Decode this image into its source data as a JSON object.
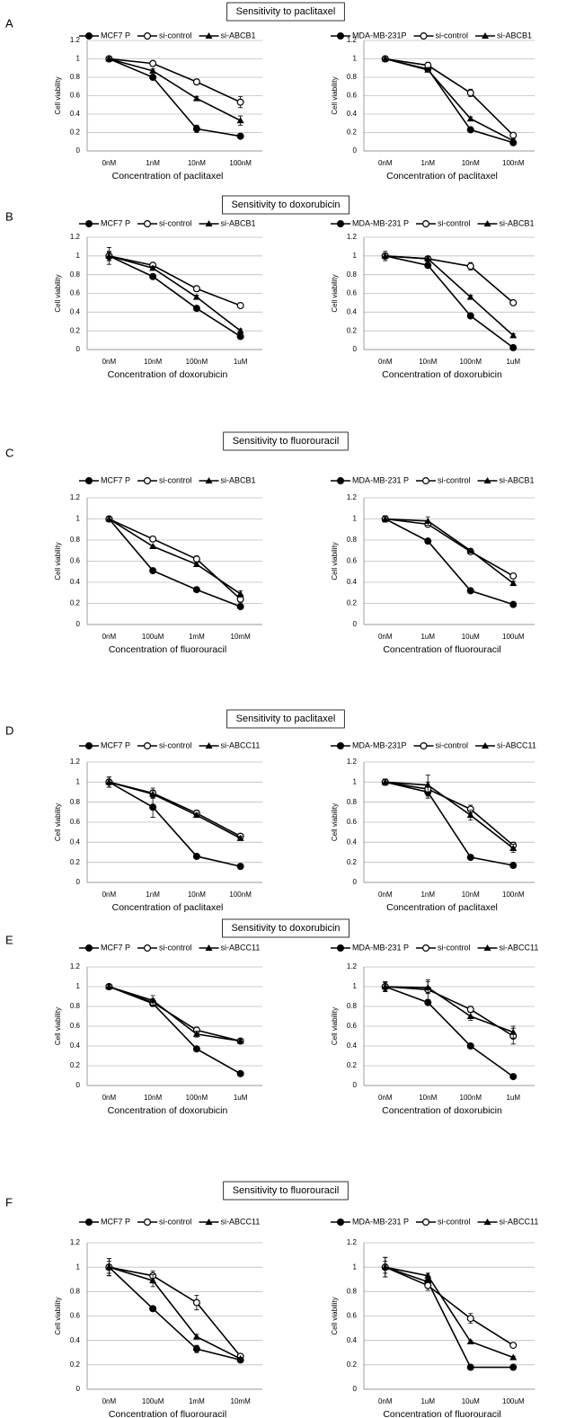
{
  "panels": [
    {
      "label": "A",
      "title": "Sensitivity to paclitaxel"
    },
    {
      "label": "B",
      "title": "Sensitivity to doxorubicin"
    },
    {
      "label": "C",
      "title": "Sensitivity to fluorouracil"
    },
    {
      "label": "D",
      "title": "Sensitivity to paclitaxel"
    },
    {
      "label": "E",
      "title": "Sensitivity to doxorubicin"
    },
    {
      "label": "F",
      "title": "Sensitivity to fluorouracil"
    }
  ],
  "chart_data": [
    {
      "type": "line",
      "ylabel": "Cell viability",
      "xlabel": "Concentration of paclitaxel",
      "categories": [
        "0nM",
        "1nM",
        "10nM",
        "100nM"
      ],
      "ylim": [
        0,
        1.2
      ],
      "yticks": [
        0,
        0.2,
        0.4,
        0.6,
        0.8,
        1,
        1.2
      ],
      "grid": true,
      "series": [
        {
          "name": "MCF7 P",
          "color": "#000000",
          "marker": "filled-circle",
          "values": [
            1,
            0.8,
            0.24,
            0.16
          ],
          "errors": [
            0.01,
            0.02,
            0.04,
            0.01
          ]
        },
        {
          "name": "si-control",
          "color": "#000000",
          "marker": "open-circle",
          "values": [
            1,
            0.95,
            0.75,
            0.53
          ],
          "errors": [
            0.01,
            0.02,
            0.03,
            0.06
          ]
        },
        {
          "name": "si-ABCB1",
          "color": "#000000",
          "marker": "filled-triangle",
          "values": [
            1,
            0.87,
            0.57,
            0.33
          ],
          "errors": [
            0.01,
            0.02,
            0.02,
            0.05
          ]
        }
      ]
    },
    {
      "type": "line",
      "ylabel": "Cell viability",
      "xlabel": "Concentration of paclitaxel",
      "categories": [
        "0nM",
        "1nM",
        "10nM",
        "100nM"
      ],
      "ylim": [
        0,
        1.2
      ],
      "yticks": [
        0,
        0.2,
        0.4,
        0.6,
        0.8,
        1,
        1.2
      ],
      "grid": true,
      "series": [
        {
          "name": "MDA-MB-231P",
          "color": "#000000",
          "marker": "filled-circle",
          "values": [
            1,
            0.89,
            0.23,
            0.09
          ],
          "errors": [
            0.01,
            0.02,
            0.01,
            0.01
          ]
        },
        {
          "name": "si-control",
          "color": "#000000",
          "marker": "open-circle",
          "values": [
            1,
            0.93,
            0.63,
            0.17
          ],
          "errors": [
            0.01,
            0.03,
            0.04,
            0.02
          ]
        },
        {
          "name": "si-ABCB1",
          "color": "#000000",
          "marker": "filled-triangle",
          "values": [
            1,
            0.88,
            0.35,
            0.11
          ],
          "errors": [
            0.01,
            0.02,
            0.02,
            0.02
          ]
        }
      ]
    },
    {
      "type": "line",
      "ylabel": "Cell viability",
      "xlabel": "Concentration of doxorubicin",
      "categories": [
        "0nM",
        "10nM",
        "100nM",
        "1uM"
      ],
      "ylim": [
        0,
        1.2
      ],
      "yticks": [
        0,
        0.2,
        0.4,
        0.6,
        0.8,
        1,
        1.2
      ],
      "grid": true,
      "series": [
        {
          "name": "MCF7 P",
          "color": "#000000",
          "marker": "filled-circle",
          "values": [
            1,
            0.78,
            0.44,
            0.14
          ],
          "errors": [
            0.09,
            0.01,
            0.02,
            0.01
          ]
        },
        {
          "name": "si-control",
          "color": "#000000",
          "marker": "open-circle",
          "values": [
            1,
            0.9,
            0.65,
            0.47
          ],
          "errors": [
            0.05,
            0.02,
            0.03,
            0.02
          ]
        },
        {
          "name": "si-ABCB1",
          "color": "#000000",
          "marker": "filled-triangle",
          "values": [
            1,
            0.87,
            0.56,
            0.2
          ],
          "errors": [
            0.04,
            0.02,
            0.02,
            0.02
          ]
        }
      ]
    },
    {
      "type": "line",
      "ylabel": "Cell viability",
      "xlabel": "Concentration of doxorubicin",
      "categories": [
        "0nM",
        "10nM",
        "100nM",
        "1uM"
      ],
      "ylim": [
        0,
        1.2
      ],
      "yticks": [
        0,
        0.2,
        0.4,
        0.6,
        0.8,
        1,
        1.2
      ],
      "grid": true,
      "series": [
        {
          "name": "MDA-MB-231 P",
          "color": "#000000",
          "marker": "filled-circle",
          "values": [
            1,
            0.9,
            0.36,
            0.02
          ],
          "errors": [
            0.05,
            0.02,
            0.01,
            0.01
          ]
        },
        {
          "name": "si-control",
          "color": "#000000",
          "marker": "open-circle",
          "values": [
            1,
            0.97,
            0.89,
            0.5
          ],
          "errors": [
            0.03,
            0.02,
            0.04,
            0.02
          ]
        },
        {
          "name": "si-ABCB1",
          "color": "#000000",
          "marker": "filled-triangle",
          "values": [
            1,
            0.97,
            0.56,
            0.15
          ],
          "errors": [
            0.03,
            0.02,
            0.02,
            0.02
          ]
        }
      ]
    },
    {
      "type": "line",
      "ylabel": "Cell viability",
      "xlabel": "Concentration of fluorouracil",
      "categories": [
        "0nM",
        "100uM",
        "1mM",
        "10mM"
      ],
      "ylim": [
        0,
        1.2
      ],
      "yticks": [
        0,
        0.2,
        0.4,
        0.6,
        0.8,
        1,
        1.2
      ],
      "grid": true,
      "series": [
        {
          "name": "MCF7 P",
          "color": "#000000",
          "marker": "filled-circle",
          "values": [
            1,
            0.51,
            0.33,
            0.17
          ],
          "errors": [
            0.02,
            0.02,
            0.01,
            0.01
          ]
        },
        {
          "name": "si-control",
          "color": "#000000",
          "marker": "open-circle",
          "values": [
            1,
            0.81,
            0.62,
            0.24
          ],
          "errors": [
            0.02,
            0.01,
            0.03,
            0.03
          ]
        },
        {
          "name": "si-ABCB1",
          "color": "#000000",
          "marker": "filled-triangle",
          "values": [
            1,
            0.74,
            0.57,
            0.29
          ],
          "errors": [
            0.02,
            0.01,
            0.02,
            0.03
          ]
        }
      ]
    },
    {
      "type": "line",
      "ylabel": "Cell viability",
      "xlabel": "Concentration of fluorouracil",
      "categories": [
        "0nM",
        "1uM",
        "10uM",
        "100uM"
      ],
      "ylim": [
        0,
        1.2
      ],
      "yticks": [
        0,
        0.2,
        0.4,
        0.6,
        0.8,
        1,
        1.2
      ],
      "grid": true,
      "series": [
        {
          "name": "MDA-MB-231 P",
          "color": "#000000",
          "marker": "filled-circle",
          "values": [
            1,
            0.79,
            0.32,
            0.19
          ],
          "errors": [
            0.03,
            0.02,
            0.01,
            0.01
          ]
        },
        {
          "name": "si-control",
          "color": "#000000",
          "marker": "open-circle",
          "values": [
            1,
            0.95,
            0.69,
            0.46
          ],
          "errors": [
            0.03,
            0.02,
            0.01,
            0.01
          ]
        },
        {
          "name": "si-ABCB1",
          "color": "#000000",
          "marker": "filled-triangle",
          "values": [
            1,
            0.98,
            0.7,
            0.39
          ],
          "errors": [
            0.03,
            0.04,
            0.02,
            0.02
          ]
        }
      ]
    },
    {
      "type": "line",
      "ylabel": "Cell viability",
      "xlabel": "Concentration of paclitaxel",
      "categories": [
        "0nM",
        "1nM",
        "10nM",
        "100nM"
      ],
      "ylim": [
        0,
        1.2
      ],
      "yticks": [
        0,
        0.2,
        0.4,
        0.6,
        0.8,
        1,
        1.2
      ],
      "grid": true,
      "series": [
        {
          "name": "MCF7 P",
          "color": "#000000",
          "marker": "filled-circle",
          "values": [
            1,
            0.75,
            0.26,
            0.16
          ],
          "errors": [
            0.05,
            0.1,
            0.01,
            0.01
          ]
        },
        {
          "name": "si-control",
          "color": "#000000",
          "marker": "open-circle",
          "values": [
            1,
            0.89,
            0.69,
            0.46
          ],
          "errors": [
            0.05,
            0.05,
            0.03,
            0.02
          ]
        },
        {
          "name": "si-ABCC11",
          "color": "#000000",
          "marker": "filled-triangle",
          "values": [
            1,
            0.88,
            0.67,
            0.44
          ],
          "errors": [
            0.05,
            0.04,
            0.02,
            0.02
          ]
        }
      ]
    },
    {
      "type": "line",
      "ylabel": "Cell viability",
      "xlabel": "Concentration of paclitaxel",
      "categories": [
        "0nM",
        "1nM",
        "10nM",
        "100nM"
      ],
      "ylim": [
        0,
        1.2
      ],
      "yticks": [
        0,
        0.2,
        0.4,
        0.6,
        0.8,
        1,
        1.2
      ],
      "grid": true,
      "series": [
        {
          "name": "MDA-MB-231P",
          "color": "#000000",
          "marker": "filled-circle",
          "values": [
            1,
            0.9,
            0.25,
            0.17
          ],
          "errors": [
            0.03,
            0.06,
            0.01,
            0.01
          ]
        },
        {
          "name": "si-control",
          "color": "#000000",
          "marker": "open-circle",
          "values": [
            1,
            0.93,
            0.73,
            0.37
          ],
          "errors": [
            0.03,
            0.07,
            0.04,
            0.03
          ]
        },
        {
          "name": "si-ABCC11",
          "color": "#000000",
          "marker": "filled-triangle",
          "values": [
            1,
            0.97,
            0.67,
            0.34
          ],
          "errors": [
            0.03,
            0.1,
            0.05,
            0.04
          ]
        }
      ]
    },
    {
      "type": "line",
      "ylabel": "Cell viability",
      "xlabel": "Concentration of doxorubicin",
      "categories": [
        "0nM",
        "10nM",
        "100nM",
        "1uM"
      ],
      "ylim": [
        0,
        1.2
      ],
      "yticks": [
        0,
        0.2,
        0.4,
        0.6,
        0.8,
        1,
        1.2
      ],
      "grid": true,
      "series": [
        {
          "name": "MCF7 P",
          "color": "#000000",
          "marker": "filled-circle",
          "values": [
            1,
            0.83,
            0.37,
            0.12
          ],
          "errors": [
            0.02,
            0.03,
            0.01,
            0.01
          ]
        },
        {
          "name": "si-control",
          "color": "#000000",
          "marker": "open-circle",
          "values": [
            1,
            0.84,
            0.56,
            0.45
          ],
          "errors": [
            0.02,
            0.04,
            0.03,
            0.02
          ]
        },
        {
          "name": "si-ABCC11",
          "color": "#000000",
          "marker": "filled-triangle",
          "values": [
            1,
            0.86,
            0.52,
            0.45
          ],
          "errors": [
            0.02,
            0.05,
            0.03,
            0.02
          ]
        }
      ]
    },
    {
      "type": "line",
      "ylabel": "Cell viability",
      "xlabel": "Concentration of doxorubicin",
      "categories": [
        "0nM",
        "10nM",
        "100nM",
        "1uM"
      ],
      "ylim": [
        0,
        1.2
      ],
      "yticks": [
        0,
        0.2,
        0.4,
        0.6,
        0.8,
        1,
        1.2
      ],
      "grid": true,
      "series": [
        {
          "name": "MDA-MB-231 P",
          "color": "#000000",
          "marker": "filled-circle",
          "values": [
            1,
            0.84,
            0.4,
            0.09
          ],
          "errors": [
            0.05,
            0.02,
            0.01,
            0.01
          ]
        },
        {
          "name": "si-control",
          "color": "#000000",
          "marker": "open-circle",
          "values": [
            1,
            0.97,
            0.77,
            0.5
          ],
          "errors": [
            0.05,
            0.1,
            0.03,
            0.08
          ]
        },
        {
          "name": "si-ABCC11",
          "color": "#000000",
          "marker": "filled-triangle",
          "values": [
            1,
            0.99,
            0.7,
            0.54
          ],
          "errors": [
            0.04,
            0.06,
            0.04,
            0.06
          ]
        }
      ]
    },
    {
      "type": "line",
      "ylabel": "Cell viability",
      "xlabel": "Concentration of fluorouracil",
      "categories": [
        "0nM",
        "100uM",
        "1mM",
        "10mM"
      ],
      "ylim": [
        0,
        1.2
      ],
      "yticks": [
        0,
        0.2,
        0.4,
        0.6,
        0.8,
        1,
        1.2
      ],
      "grid": true,
      "series": [
        {
          "name": "MCF7 P",
          "color": "#000000",
          "marker": "filled-circle",
          "values": [
            1,
            0.66,
            0.33,
            0.24
          ],
          "errors": [
            0.07,
            0.01,
            0.03,
            0.01
          ]
        },
        {
          "name": "si-control",
          "color": "#000000",
          "marker": "open-circle",
          "values": [
            1,
            0.93,
            0.71,
            0.27
          ],
          "errors": [
            0.07,
            0.04,
            0.06,
            0.01
          ]
        },
        {
          "name": "si-ABCC11",
          "color": "#000000",
          "marker": "filled-triangle",
          "values": [
            1,
            0.89,
            0.43,
            0.25
          ],
          "errors": [
            0.05,
            0.05,
            0.02,
            0.01
          ]
        }
      ]
    },
    {
      "type": "line",
      "ylabel": "Cell viability",
      "xlabel": "Concentration of fluorouracil",
      "categories": [
        "0nM",
        "1uM",
        "10uM",
        "100uM"
      ],
      "ylim": [
        0,
        1.2
      ],
      "yticks": [
        0,
        0.2,
        0.4,
        0.6,
        0.8,
        1,
        1.2
      ],
      "grid": true,
      "series": [
        {
          "name": "MDA-MB-231 P",
          "color": "#000000",
          "marker": "filled-circle",
          "values": [
            1,
            0.88,
            0.18,
            0.18
          ],
          "errors": [
            0.08,
            0.02,
            0.02,
            0.01
          ]
        },
        {
          "name": "si-control",
          "color": "#000000",
          "marker": "open-circle",
          "values": [
            1,
            0.85,
            0.58,
            0.36
          ],
          "errors": [
            0.08,
            0.04,
            0.04,
            0.01
          ]
        },
        {
          "name": "si-ABCC11",
          "color": "#000000",
          "marker": "filled-triangle",
          "values": [
            1,
            0.93,
            0.39,
            0.26
          ],
          "errors": [
            0.05,
            0.02,
            0.01,
            0.01
          ]
        }
      ]
    }
  ]
}
